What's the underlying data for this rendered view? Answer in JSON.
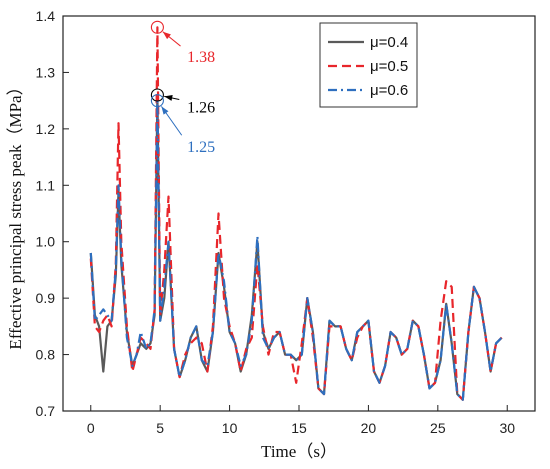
{
  "chart_data": {
    "type": "line",
    "xlabel": "Time（s）",
    "ylabel": "Effective principal stress peak（MPa）",
    "xlim": [
      -2,
      32
    ],
    "ylim": [
      0.7,
      1.4
    ],
    "xticks": [
      0,
      5,
      10,
      15,
      20,
      25,
      30
    ],
    "yticks": [
      0.7,
      0.8,
      0.9,
      1.0,
      1.1,
      1.2,
      1.3,
      1.4
    ],
    "grid": false,
    "legend_position": "top-right",
    "series": [
      {
        "name": "μ=0.4",
        "color": "#5a5a5a",
        "style": "solid",
        "points": [
          [
            0,
            0.98
          ],
          [
            0.3,
            0.87
          ],
          [
            0.6,
            0.85
          ],
          [
            0.9,
            0.77
          ],
          [
            1.2,
            0.85
          ],
          [
            1.5,
            0.86
          ],
          [
            1.8,
            0.94
          ],
          [
            2.0,
            1.09
          ],
          [
            2.2,
            0.96
          ],
          [
            2.6,
            0.84
          ],
          [
            3.0,
            0.78
          ],
          [
            3.3,
            0.8
          ],
          [
            3.6,
            0.82
          ],
          [
            4.0,
            0.81
          ],
          [
            4.3,
            0.82
          ],
          [
            4.6,
            0.87
          ],
          [
            4.8,
            1.26
          ],
          [
            5.0,
            0.86
          ],
          [
            5.3,
            0.9
          ],
          [
            5.6,
            1.0
          ],
          [
            6.0,
            0.81
          ],
          [
            6.4,
            0.76
          ],
          [
            6.8,
            0.79
          ],
          [
            7.2,
            0.83
          ],
          [
            7.6,
            0.85
          ],
          [
            8.0,
            0.79
          ],
          [
            8.4,
            0.77
          ],
          [
            8.8,
            0.84
          ],
          [
            9.2,
            0.98
          ],
          [
            9.6,
            0.92
          ],
          [
            10.0,
            0.84
          ],
          [
            10.4,
            0.82
          ],
          [
            10.8,
            0.77
          ],
          [
            11.2,
            0.8
          ],
          [
            11.6,
            0.87
          ],
          [
            12.0,
            1.0
          ],
          [
            12.4,
            0.84
          ],
          [
            12.8,
            0.81
          ],
          [
            13.2,
            0.83
          ],
          [
            13.6,
            0.84
          ],
          [
            14.0,
            0.8
          ],
          [
            14.4,
            0.8
          ],
          [
            14.8,
            0.79
          ],
          [
            15.2,
            0.8
          ],
          [
            15.6,
            0.9
          ],
          [
            16.0,
            0.84
          ],
          [
            16.4,
            0.74
          ],
          [
            16.8,
            0.73
          ],
          [
            17.2,
            0.86
          ],
          [
            17.6,
            0.85
          ],
          [
            18.0,
            0.85
          ],
          [
            18.4,
            0.81
          ],
          [
            18.8,
            0.79
          ],
          [
            19.2,
            0.84
          ],
          [
            19.6,
            0.85
          ],
          [
            20.0,
            0.86
          ],
          [
            20.4,
            0.77
          ],
          [
            20.8,
            0.75
          ],
          [
            21.2,
            0.78
          ],
          [
            21.6,
            0.84
          ],
          [
            22.0,
            0.83
          ],
          [
            22.4,
            0.8
          ],
          [
            22.8,
            0.81
          ],
          [
            23.2,
            0.86
          ],
          [
            23.6,
            0.85
          ],
          [
            24.0,
            0.8
          ],
          [
            24.4,
            0.74
          ],
          [
            24.8,
            0.75
          ],
          [
            25.2,
            0.79
          ],
          [
            25.6,
            0.89
          ],
          [
            26.0,
            0.82
          ],
          [
            26.4,
            0.73
          ],
          [
            26.8,
            0.72
          ],
          [
            27.2,
            0.84
          ],
          [
            27.6,
            0.92
          ],
          [
            28.0,
            0.9
          ],
          [
            28.4,
            0.84
          ],
          [
            28.8,
            0.77
          ],
          [
            29.2,
            0.82
          ],
          [
            29.6,
            0.83
          ]
        ]
      },
      {
        "name": "μ=0.5",
        "color": "#e8262b",
        "style": "dashed",
        "points": [
          [
            0,
            0.97
          ],
          [
            0.3,
            0.85
          ],
          [
            0.6,
            0.84
          ],
          [
            0.9,
            0.86
          ],
          [
            1.2,
            0.87
          ],
          [
            1.5,
            0.85
          ],
          [
            1.8,
            0.96
          ],
          [
            2.0,
            1.21
          ],
          [
            2.2,
            1.0
          ],
          [
            2.6,
            0.85
          ],
          [
            3.0,
            0.77
          ],
          [
            3.3,
            0.8
          ],
          [
            3.6,
            0.83
          ],
          [
            4.0,
            0.82
          ],
          [
            4.3,
            0.81
          ],
          [
            4.6,
            0.88
          ],
          [
            4.8,
            1.38
          ],
          [
            5.0,
            0.87
          ],
          [
            5.3,
            0.95
          ],
          [
            5.6,
            1.08
          ],
          [
            6.0,
            0.81
          ],
          [
            6.4,
            0.76
          ],
          [
            6.8,
            0.8
          ],
          [
            7.2,
            0.82
          ],
          [
            7.6,
            0.83
          ],
          [
            8.0,
            0.82
          ],
          [
            8.4,
            0.77
          ],
          [
            8.8,
            0.85
          ],
          [
            9.2,
            1.05
          ],
          [
            9.6,
            0.9
          ],
          [
            10.0,
            0.85
          ],
          [
            10.4,
            0.82
          ],
          [
            10.8,
            0.77
          ],
          [
            11.2,
            0.81
          ],
          [
            11.6,
            0.83
          ],
          [
            12.0,
            0.96
          ],
          [
            12.4,
            0.85
          ],
          [
            12.8,
            0.8
          ],
          [
            13.2,
            0.84
          ],
          [
            13.6,
            0.84
          ],
          [
            14.0,
            0.8
          ],
          [
            14.4,
            0.8
          ],
          [
            14.8,
            0.75
          ],
          [
            15.2,
            0.82
          ],
          [
            15.6,
            0.9
          ],
          [
            16.0,
            0.83
          ],
          [
            16.4,
            0.74
          ],
          [
            16.8,
            0.73
          ],
          [
            17.2,
            0.85
          ],
          [
            17.6,
            0.85
          ],
          [
            18.0,
            0.85
          ],
          [
            18.4,
            0.81
          ],
          [
            18.8,
            0.79
          ],
          [
            19.2,
            0.83
          ],
          [
            19.6,
            0.85
          ],
          [
            20.0,
            0.86
          ],
          [
            20.4,
            0.77
          ],
          [
            20.8,
            0.75
          ],
          [
            21.2,
            0.78
          ],
          [
            21.6,
            0.84
          ],
          [
            22.0,
            0.83
          ],
          [
            22.4,
            0.8
          ],
          [
            22.8,
            0.81
          ],
          [
            23.2,
            0.86
          ],
          [
            23.6,
            0.85
          ],
          [
            24.0,
            0.8
          ],
          [
            24.4,
            0.74
          ],
          [
            24.8,
            0.75
          ],
          [
            25.2,
            0.86
          ],
          [
            25.6,
            0.93
          ],
          [
            26.0,
            0.92
          ],
          [
            26.4,
            0.73
          ],
          [
            26.8,
            0.72
          ],
          [
            27.2,
            0.84
          ],
          [
            27.6,
            0.92
          ],
          [
            28.0,
            0.9
          ],
          [
            28.4,
            0.84
          ],
          [
            28.8,
            0.77
          ],
          [
            29.2,
            0.82
          ],
          [
            29.6,
            0.83
          ]
        ]
      },
      {
        "name": "μ=0.6",
        "color": "#2e6fbf",
        "style": "dashdot",
        "points": [
          [
            0,
            0.98
          ],
          [
            0.3,
            0.86
          ],
          [
            0.6,
            0.87
          ],
          [
            0.9,
            0.88
          ],
          [
            1.2,
            0.87
          ],
          [
            1.5,
            0.86
          ],
          [
            1.8,
            0.95
          ],
          [
            2.0,
            1.1
          ],
          [
            2.2,
            0.97
          ],
          [
            2.6,
            0.83
          ],
          [
            3.0,
            0.78
          ],
          [
            3.3,
            0.8
          ],
          [
            3.6,
            0.84
          ],
          [
            4.0,
            0.81
          ],
          [
            4.3,
            0.82
          ],
          [
            4.6,
            0.88
          ],
          [
            4.8,
            1.25
          ],
          [
            5.0,
            0.86
          ],
          [
            5.3,
            0.92
          ],
          [
            5.6,
            1.0
          ],
          [
            6.0,
            0.81
          ],
          [
            6.4,
            0.76
          ],
          [
            6.8,
            0.79
          ],
          [
            7.2,
            0.83
          ],
          [
            7.6,
            0.85
          ],
          [
            8.0,
            0.79
          ],
          [
            8.4,
            0.78
          ],
          [
            8.8,
            0.84
          ],
          [
            9.2,
            0.98
          ],
          [
            9.6,
            0.93
          ],
          [
            10.0,
            0.84
          ],
          [
            10.4,
            0.82
          ],
          [
            10.8,
            0.78
          ],
          [
            11.2,
            0.8
          ],
          [
            11.6,
            0.86
          ],
          [
            12.0,
            1.01
          ],
          [
            12.4,
            0.83
          ],
          [
            12.8,
            0.81
          ],
          [
            13.2,
            0.83
          ],
          [
            13.6,
            0.84
          ],
          [
            14.0,
            0.8
          ],
          [
            14.4,
            0.8
          ],
          [
            14.8,
            0.79
          ],
          [
            15.2,
            0.8
          ],
          [
            15.6,
            0.9
          ],
          [
            16.0,
            0.84
          ],
          [
            16.4,
            0.74
          ],
          [
            16.8,
            0.73
          ],
          [
            17.2,
            0.86
          ],
          [
            17.6,
            0.85
          ],
          [
            18.0,
            0.85
          ],
          [
            18.4,
            0.81
          ],
          [
            18.8,
            0.79
          ],
          [
            19.2,
            0.84
          ],
          [
            19.6,
            0.85
          ],
          [
            20.0,
            0.86
          ],
          [
            20.4,
            0.77
          ],
          [
            20.8,
            0.75
          ],
          [
            21.2,
            0.78
          ],
          [
            21.6,
            0.84
          ],
          [
            22.0,
            0.83
          ],
          [
            22.4,
            0.8
          ],
          [
            22.8,
            0.81
          ],
          [
            23.2,
            0.86
          ],
          [
            23.6,
            0.85
          ],
          [
            24.0,
            0.8
          ],
          [
            24.4,
            0.74
          ],
          [
            24.8,
            0.75
          ],
          [
            25.2,
            0.79
          ],
          [
            25.6,
            0.89
          ],
          [
            26.0,
            0.82
          ],
          [
            26.4,
            0.73
          ],
          [
            26.8,
            0.72
          ],
          [
            27.2,
            0.84
          ],
          [
            27.6,
            0.92
          ],
          [
            28.0,
            0.9
          ],
          [
            28.4,
            0.84
          ],
          [
            28.8,
            0.77
          ],
          [
            29.2,
            0.82
          ],
          [
            29.6,
            0.83
          ]
        ]
      }
    ],
    "annotations": [
      {
        "text": "1.38",
        "color": "#e8262b",
        "point": [
          4.8,
          1.38
        ],
        "text_at": [
          6.8,
          1.34
        ]
      },
      {
        "text": "1.26",
        "color": "#000000",
        "point": [
          4.8,
          1.26
        ],
        "text_at": [
          6.8,
          1.25
        ]
      },
      {
        "text": "1.25",
        "color": "#2e6fbf",
        "point": [
          4.8,
          1.25
        ],
        "text_at": [
          6.8,
          1.18
        ]
      }
    ]
  }
}
